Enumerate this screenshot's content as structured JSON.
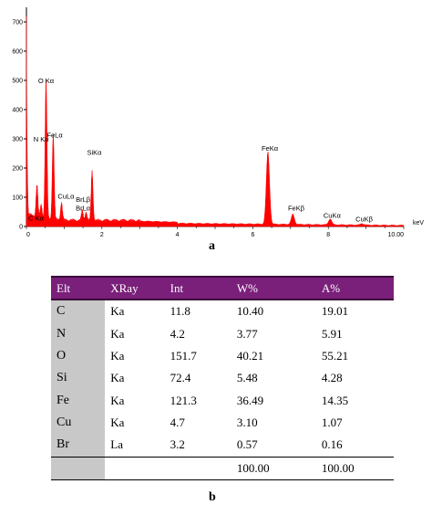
{
  "chart_data": {
    "type": "line",
    "xlabel": "keV",
    "xlim": [
      0,
      10
    ],
    "ylim": [
      0,
      750
    ],
    "x_ticks": [
      "0",
      "2",
      "4",
      "6",
      "8",
      "10.00"
    ],
    "y_ticks": [
      "0",
      "100",
      "200",
      "300",
      "400",
      "500",
      "600",
      "700"
    ],
    "fill_color": "#ff0000",
    "grid": false,
    "peaks": [
      {
        "label": "C Kα",
        "x": 0.28,
        "y": 110
      },
      {
        "label": "N Kα",
        "x": 0.39,
        "y": 45
      },
      {
        "label": "O Kα",
        "x": 0.52,
        "y": 480
      },
      {
        "label": "FeLα",
        "x": 0.71,
        "y": 290
      },
      {
        "label": "CuLα",
        "x": 0.93,
        "y": 60
      },
      {
        "label": "BrLβ",
        "x": 1.48,
        "y": 35
      },
      {
        "label": "BrLα",
        "x": 1.58,
        "y": 30
      },
      {
        "label": "SiKα",
        "x": 1.74,
        "y": 170
      },
      {
        "label": "FeKα",
        "x": 6.4,
        "y": 248
      },
      {
        "label": "FeKβ",
        "x": 7.06,
        "y": 35
      },
      {
        "label": "CuKα",
        "x": 8.05,
        "y": 20
      },
      {
        "label": "CuKβ",
        "x": 8.9,
        "y": 5
      }
    ],
    "start_value": 720
  },
  "labels": {
    "a": "a",
    "b": "b"
  },
  "table": {
    "headers": [
      "Elt",
      "XRay",
      "Int",
      "W%",
      "A%"
    ],
    "rows": [
      [
        "C",
        "Ka",
        "11.8",
        "10.40",
        "19.01"
      ],
      [
        "N",
        "Ka",
        "4.2",
        "3.77",
        "5.91"
      ],
      [
        "O",
        "Ka",
        "151.7",
        "40.21",
        "55.21"
      ],
      [
        "Si",
        "Ka",
        "72.4",
        "5.48",
        "4.28"
      ],
      [
        "Fe",
        "Ka",
        "121.3",
        "36.49",
        "14.35"
      ],
      [
        "Cu",
        "Ka",
        "4.7",
        "3.10",
        "1.07"
      ],
      [
        "Br",
        "La",
        "3.2",
        "0.57",
        "0.16"
      ]
    ],
    "totals": [
      "",
      "",
      "",
      "100.00",
      "100.00"
    ]
  }
}
